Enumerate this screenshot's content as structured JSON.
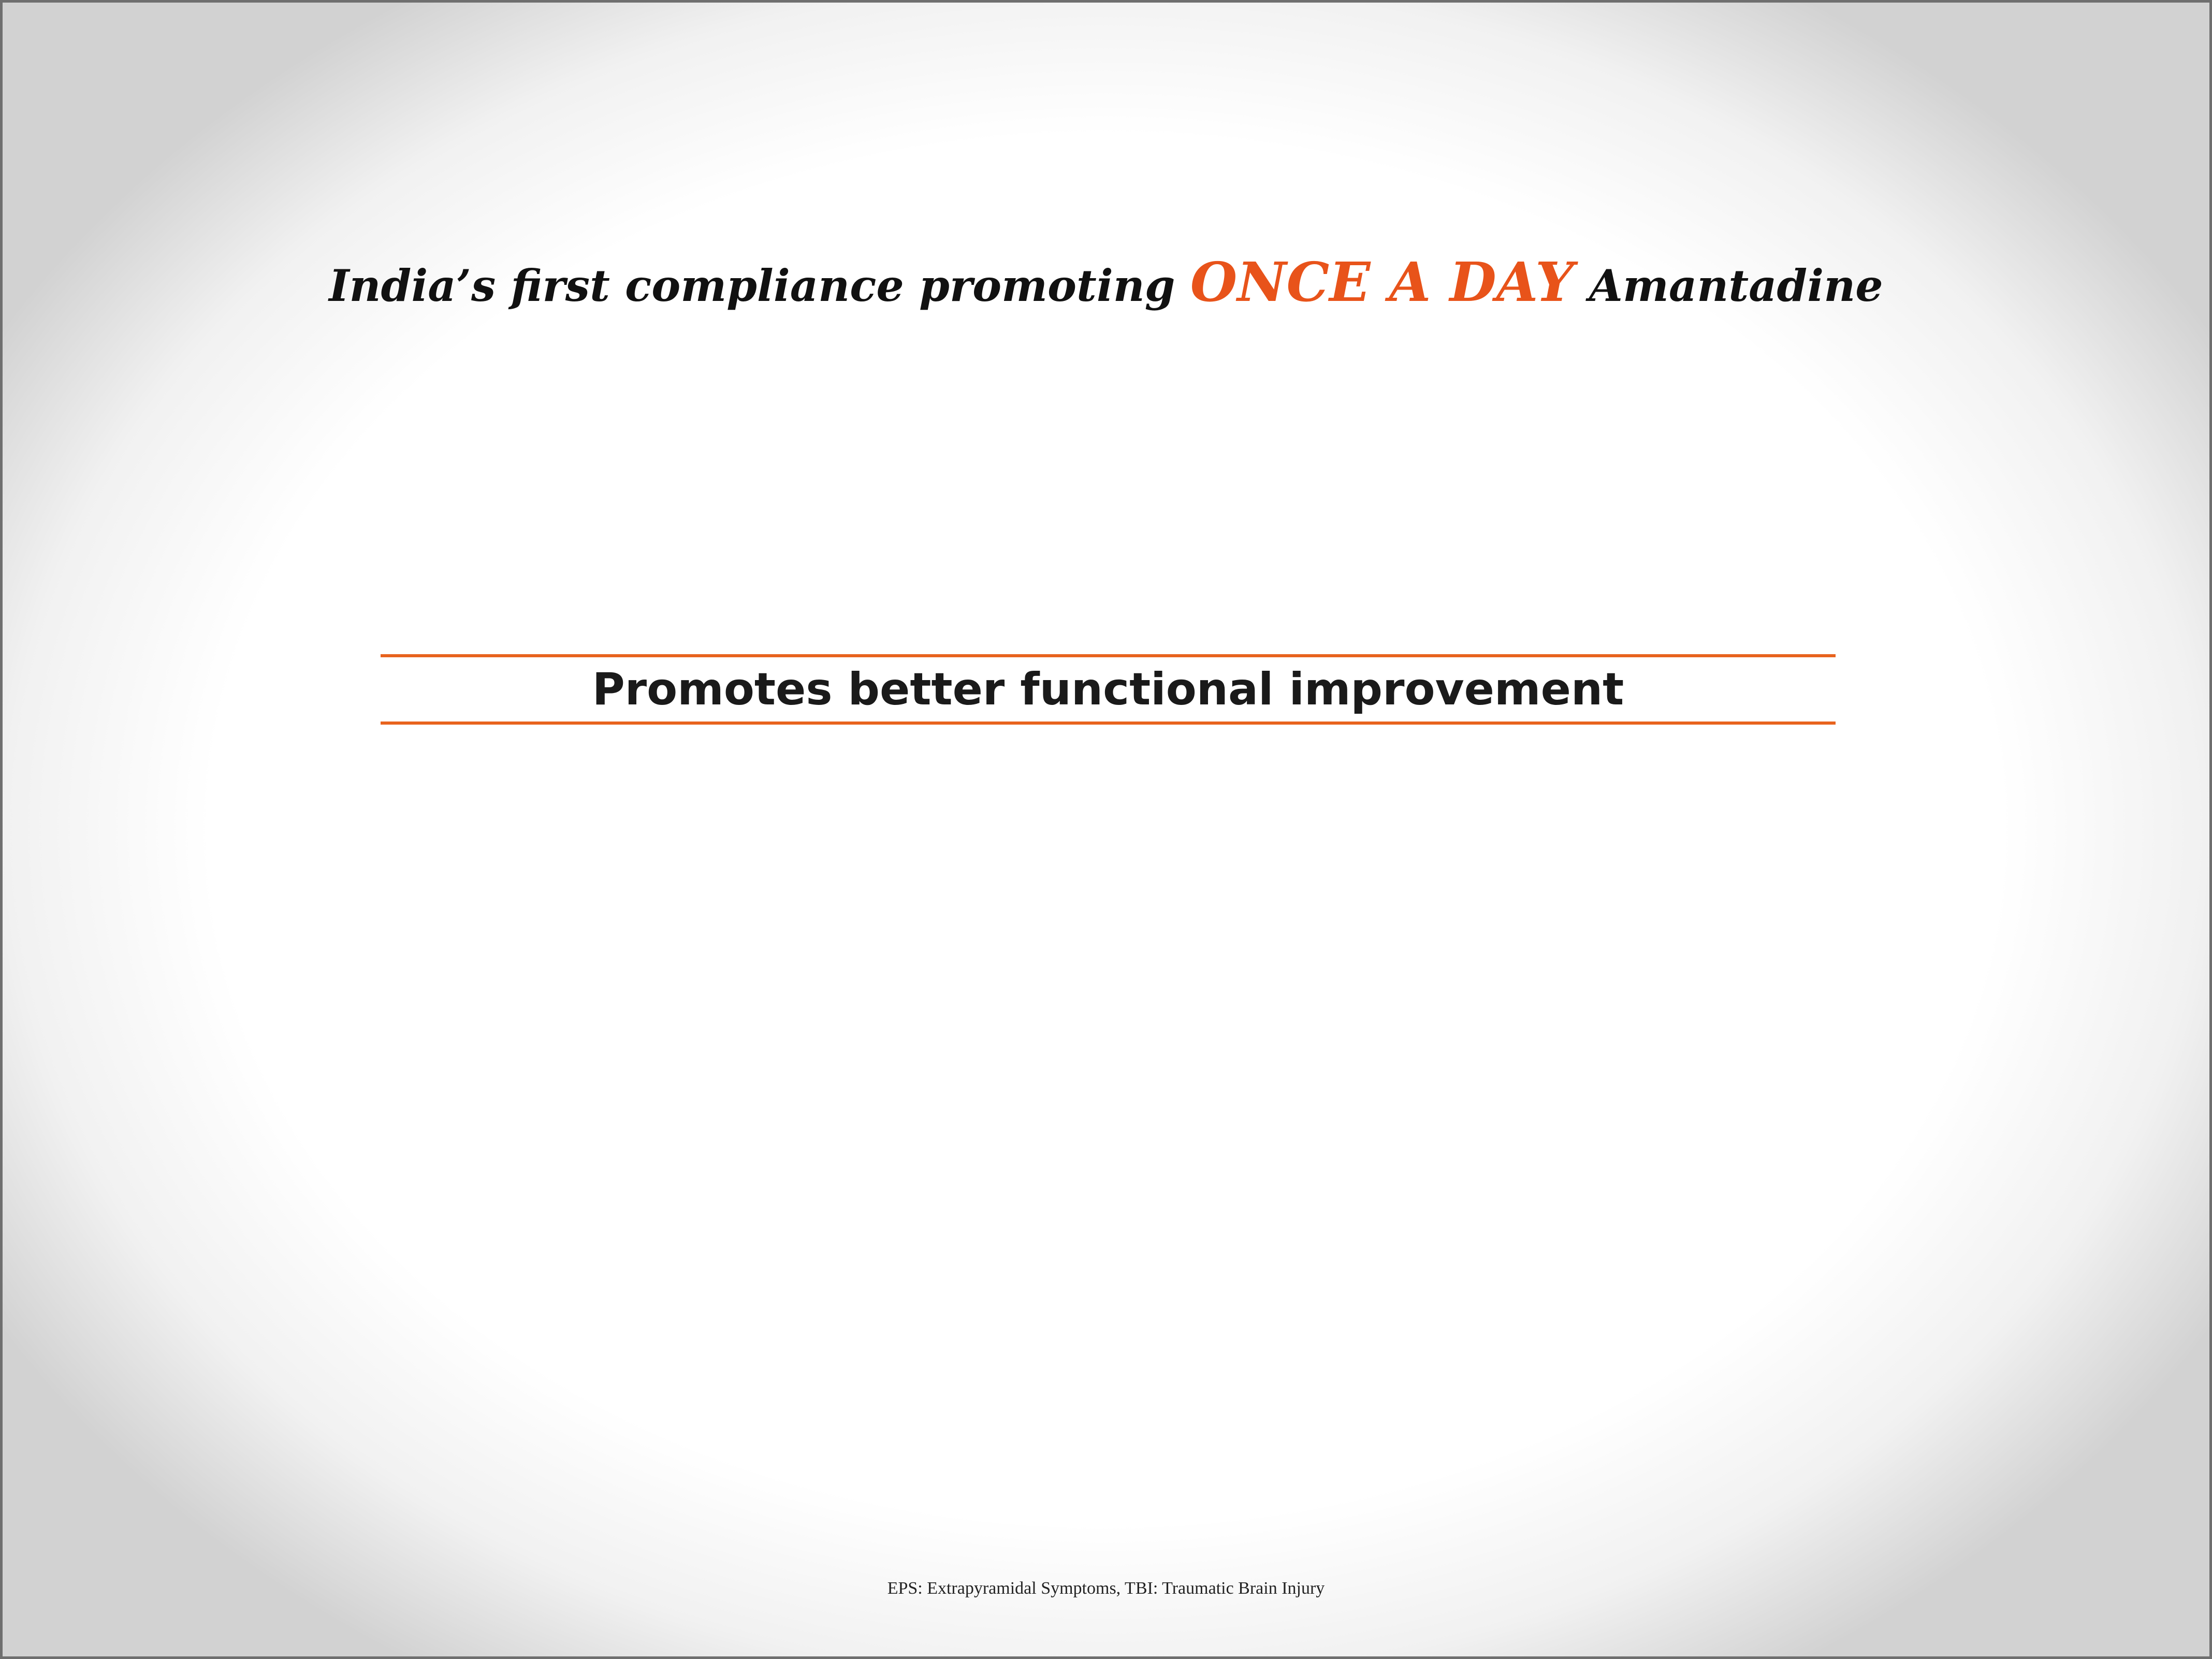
{
  "headline": {
    "before": "India’s first compliance promoting ",
    "accent": "ONCE A DAY",
    "after": " Amantadine"
  },
  "subheading": "Promotes better functional improvement",
  "footnote": "EPS: Extrapyramidal Symptoms, TBI: Traumatic Brain Injury",
  "colors": {
    "accent": "#e8531a",
    "rule": "#e8631e",
    "text": "#111111"
  }
}
